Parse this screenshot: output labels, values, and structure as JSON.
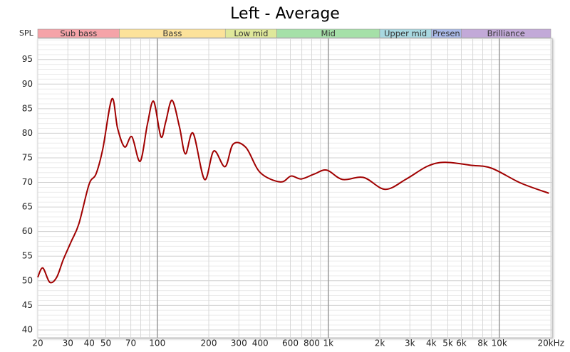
{
  "chart_data": {
    "type": "line",
    "title": "Left - Average",
    "y_label": "SPL",
    "log_x": true,
    "xlim": [
      20,
      20000
    ],
    "ylim": [
      38.4,
      99.3
    ],
    "xticks": [
      20,
      30,
      40,
      50,
      70,
      100,
      200,
      300,
      400,
      600,
      800,
      {
        "value": 1000,
        "label": "1k"
      },
      {
        "value": 2000,
        "label": "2k"
      },
      {
        "value": 3000,
        "label": "3k"
      },
      {
        "value": 4000,
        "label": "4k"
      },
      {
        "value": 5000,
        "label": "5k"
      },
      {
        "value": 6000,
        "label": "6k"
      },
      {
        "value": 8000,
        "label": "8k"
      },
      {
        "value": 10000,
        "label": "10k"
      },
      {
        "value": 20000,
        "label": "20kHz"
      }
    ],
    "xminor_ticks": [
      60,
      80,
      90,
      500,
      700,
      900,
      7000,
      9000
    ],
    "xmajor_ticks": [
      100,
      1000,
      10000
    ],
    "yticks": [
      40,
      45,
      50,
      55,
      60,
      65,
      70,
      75,
      80,
      85,
      90,
      95
    ],
    "yminor_ticks": [
      39,
      41,
      42,
      43,
      44,
      46,
      47,
      48,
      49,
      51,
      52,
      53,
      54,
      56,
      57,
      58,
      59,
      61,
      62,
      63,
      64,
      66,
      67,
      68,
      69,
      71,
      72,
      73,
      74,
      76,
      77,
      78,
      79,
      81,
      82,
      83,
      84,
      86,
      87,
      88,
      89,
      91,
      92,
      93,
      94,
      96,
      97,
      98,
      99
    ],
    "grid": true,
    "bands": [
      {
        "name": "Sub bass",
        "from": 20,
        "to": 60,
        "color": "#f5a3a8"
      },
      {
        "name": "Bass",
        "from": 60,
        "to": 250,
        "color": "#fce29a"
      },
      {
        "name": "Low mid",
        "from": 250,
        "to": 500,
        "color": "#dfe89a"
      },
      {
        "name": "Mid",
        "from": 500,
        "to": 2000,
        "color": "#a5e0a8"
      },
      {
        "name": "Upper mid",
        "from": 2000,
        "to": 4000,
        "color": "#a8d8e0"
      },
      {
        "name": "Presen",
        "from": 4000,
        "to": 6000,
        "color": "#a9b9e8"
      },
      {
        "name": "Brilliance",
        "from": 6000,
        "to": 20000,
        "color": "#c2a9d8"
      }
    ],
    "series": [
      {
        "color": "#a00000",
        "x": [
          20,
          21.4,
          23.5,
          25.8,
          28.2,
          31.4,
          34.8,
          39.9,
          43.8,
          48,
          54.3,
          58.6,
          64.5,
          71,
          79.4,
          87.6,
          95.2,
          105,
          112,
          122,
          135,
          146,
          162,
          189,
          214,
          249,
          278,
          330,
          400,
          525,
          606,
          694,
          826,
          980,
          1210,
          1610,
          2150,
          2860,
          3800,
          4800,
          6800,
          9000,
          13300,
          19500
        ],
        "values": [
          50.7,
          52.6,
          49.7,
          50.7,
          54.3,
          58,
          61.6,
          69.6,
          71.7,
          76.8,
          87,
          81,
          77.2,
          79.3,
          74.3,
          81.9,
          86.5,
          79.3,
          82.3,
          86.7,
          81.2,
          75.8,
          80,
          70.6,
          76.4,
          73.2,
          77.8,
          77.1,
          72,
          70.1,
          71.3,
          70.7,
          71.7,
          72.5,
          70.6,
          71,
          68.6,
          70.7,
          73.3,
          74.1,
          73.5,
          72.9,
          69.9,
          67.8
        ]
      }
    ]
  }
}
